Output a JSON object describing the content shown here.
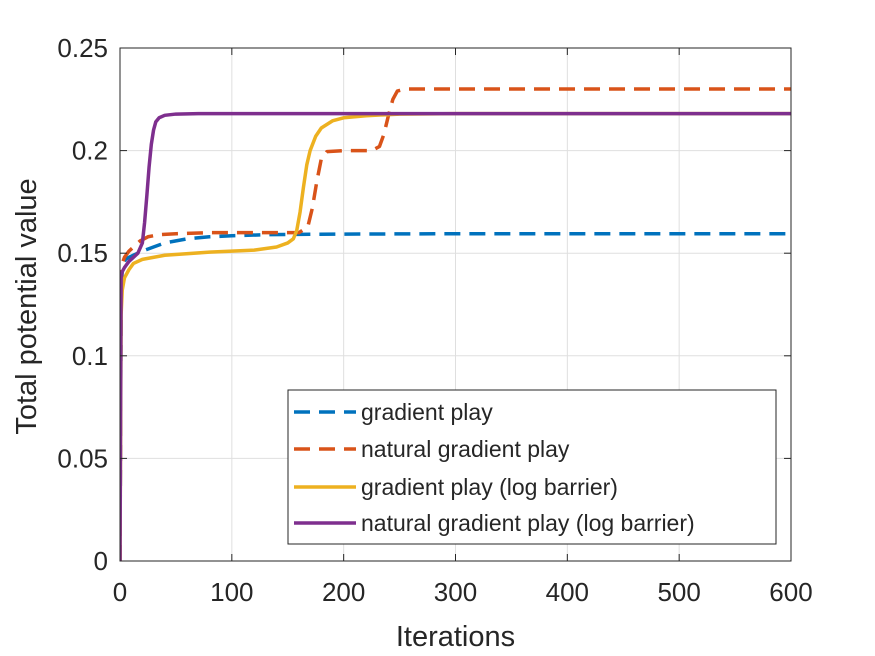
{
  "chart_data": {
    "type": "line",
    "title": "",
    "xlabel": "Iterations",
    "ylabel": "Total potential value",
    "xlim": [
      0,
      600
    ],
    "ylim": [
      0,
      0.25
    ],
    "xticks": [
      0,
      100,
      200,
      300,
      400,
      500,
      600
    ],
    "yticks": [
      0,
      0.05,
      0.1,
      0.15,
      0.2,
      0.25
    ],
    "xtick_labels": [
      "0",
      "100",
      "200",
      "300",
      "400",
      "500",
      "600"
    ],
    "ytick_labels": [
      "0",
      "0.05",
      "0.1",
      "0.15",
      "0.2",
      "0.25"
    ],
    "grid": true,
    "legend_position": "bottom-right",
    "series": [
      {
        "name": "gradient play",
        "color": "#0072BD",
        "style": "dashed",
        "x": [
          0,
          1,
          2,
          3,
          5,
          8,
          12,
          20,
          30,
          40,
          60,
          80,
          100,
          130,
          160,
          200,
          300,
          400,
          500,
          600
        ],
        "y": [
          0.0,
          0.13,
          0.142,
          0.145,
          0.147,
          0.148,
          0.149,
          0.151,
          0.153,
          0.155,
          0.157,
          0.158,
          0.1585,
          0.159,
          0.1592,
          0.1593,
          0.1595,
          0.1595,
          0.1595,
          0.1595
        ]
      },
      {
        "name": "natural gradient play",
        "color": "#D95319",
        "style": "dashed",
        "x": [
          0,
          1,
          2,
          4,
          8,
          12,
          18,
          25,
          35,
          50,
          80,
          120,
          160,
          168,
          172,
          176,
          180,
          185,
          200,
          225,
          232,
          236,
          240,
          244,
          248,
          255,
          300,
          400,
          500,
          600
        ],
        "y": [
          0.0,
          0.14,
          0.145,
          0.148,
          0.151,
          0.153,
          0.156,
          0.158,
          0.159,
          0.1595,
          0.16,
          0.16,
          0.16,
          0.163,
          0.172,
          0.185,
          0.196,
          0.1995,
          0.2,
          0.2,
          0.202,
          0.208,
          0.217,
          0.225,
          0.229,
          0.23,
          0.23,
          0.23,
          0.23,
          0.23
        ]
      },
      {
        "name": "gradient play (log barrier)",
        "color": "#EDB120",
        "style": "solid",
        "x": [
          0,
          1,
          2,
          4,
          8,
          12,
          20,
          40,
          80,
          120,
          140,
          150,
          155,
          158,
          161,
          164,
          167,
          170,
          175,
          180,
          190,
          200,
          220,
          250,
          300,
          400,
          500,
          600
        ],
        "y": [
          0.0,
          0.12,
          0.132,
          0.138,
          0.142,
          0.145,
          0.147,
          0.149,
          0.1505,
          0.1515,
          0.153,
          0.155,
          0.157,
          0.161,
          0.17,
          0.182,
          0.193,
          0.2,
          0.207,
          0.211,
          0.2145,
          0.216,
          0.217,
          0.2178,
          0.218,
          0.218,
          0.218,
          0.218
        ]
      },
      {
        "name": "natural gradient play (log barrier)",
        "color": "#7E2F8E",
        "style": "solid",
        "x": [
          0,
          1,
          2,
          4,
          8,
          12,
          16,
          20,
          22,
          24,
          26,
          28,
          30,
          32,
          35,
          40,
          50,
          70,
          100,
          200,
          300,
          400,
          500,
          600
        ],
        "y": [
          0.0,
          0.138,
          0.141,
          0.143,
          0.146,
          0.148,
          0.15,
          0.155,
          0.165,
          0.178,
          0.192,
          0.203,
          0.21,
          0.214,
          0.216,
          0.2172,
          0.2178,
          0.218,
          0.218,
          0.218,
          0.218,
          0.218,
          0.218,
          0.218
        ]
      }
    ]
  }
}
